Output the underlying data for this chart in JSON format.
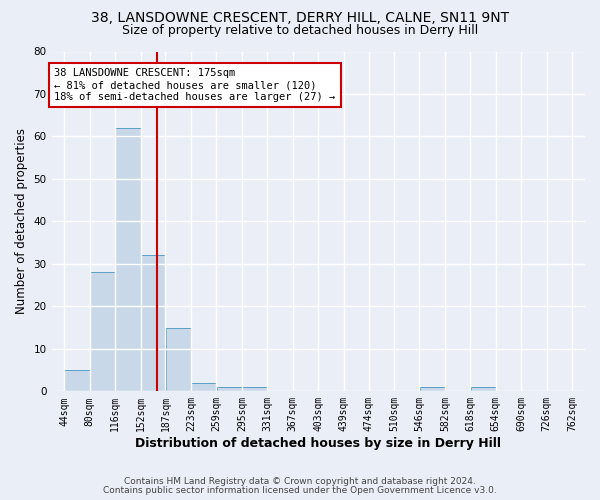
{
  "title": "38, LANSDOWNE CRESCENT, DERRY HILL, CALNE, SN11 9NT",
  "subtitle": "Size of property relative to detached houses in Derry Hill",
  "xlabel": "Distribution of detached houses by size in Derry Hill",
  "ylabel": "Number of detached properties",
  "bar_color": "#c8d8e8",
  "bar_edge_color": "#5a9fc8",
  "bin_edges": [
    44,
    80,
    116,
    152,
    187,
    223,
    259,
    295,
    331,
    367,
    403,
    439,
    474,
    510,
    546,
    582,
    618,
    654,
    690,
    726,
    762
  ],
  "bar_heights": [
    5,
    28,
    62,
    32,
    15,
    2,
    1,
    1,
    0,
    0,
    0,
    0,
    0,
    0,
    1,
    0,
    1,
    0,
    0,
    0
  ],
  "tick_labels": [
    "44sqm",
    "80sqm",
    "116sqm",
    "152sqm",
    "187sqm",
    "223sqm",
    "259sqm",
    "295sqm",
    "331sqm",
    "367sqm",
    "403sqm",
    "439sqm",
    "474sqm",
    "510sqm",
    "546sqm",
    "582sqm",
    "618sqm",
    "654sqm",
    "690sqm",
    "726sqm",
    "762sqm"
  ],
  "vline_x": 175,
  "vline_color": "#cc0000",
  "ylim": [
    0,
    80
  ],
  "yticks": [
    0,
    10,
    20,
    30,
    40,
    50,
    60,
    70,
    80
  ],
  "annotation_title": "38 LANSDOWNE CRESCENT: 175sqm",
  "annotation_line1": "← 81% of detached houses are smaller (120)",
  "annotation_line2": "18% of semi-detached houses are larger (27) →",
  "annotation_box_color": "#ffffff",
  "annotation_box_edge": "#cc0000",
  "bg_color": "#eaeff7",
  "grid_color": "#ffffff",
  "footer1": "Contains HM Land Registry data © Crown copyright and database right 2024.",
  "footer2": "Contains public sector information licensed under the Open Government Licence v3.0.",
  "title_fontsize": 10,
  "subtitle_fontsize": 9,
  "tick_fontsize": 7,
  "ylabel_fontsize": 8.5,
  "xlabel_fontsize": 9,
  "footer_fontsize": 6.5,
  "annot_fontsize": 7.5
}
